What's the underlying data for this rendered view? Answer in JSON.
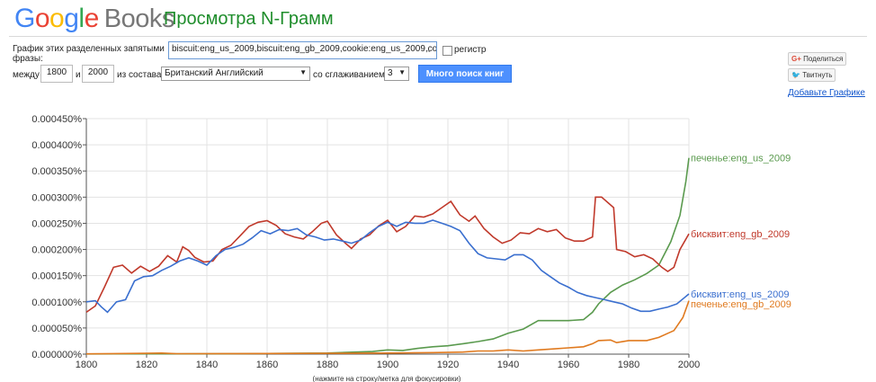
{
  "header": {
    "logo_google": [
      "G",
      "o",
      "o",
      "g",
      "l",
      "e"
    ],
    "logo_books": "Books",
    "title": "Просмотра N-Грамм"
  },
  "form": {
    "phrases_label_1": "График этих разделенных запятыми",
    "phrases_label_2": "фразы:",
    "phrases_value": "biscuit:eng_us_2009,biscuit:eng_gb_2009,cookie:eng_us_2009,coo",
    "case_label": "регистр",
    "between_label": "между",
    "year_start": "1800",
    "and_label": "и",
    "year_end": "2000",
    "corpus_label": "из состава",
    "corpus_value": "Британский Английский",
    "smoothing_label": "со сглаживанием",
    "smoothing_value": "3",
    "search_button": "Много поиск книг"
  },
  "social": {
    "share": "Поделиться",
    "tweet": "Твитнуть",
    "add_graph": "Добавьте Графике"
  },
  "colors": {
    "green_series": "#5a9a4e",
    "red_series": "#c0392b",
    "blue_series": "#3a6fcf",
    "orange_series": "#e07a1f",
    "title_green": "#1e8d2b",
    "button_blue": "#4d90fe"
  },
  "chart_data": {
    "type": "line",
    "xlim": [
      1800,
      2000
    ],
    "ylim": [
      0,
      0.00045
    ],
    "x_ticks": [
      "1800",
      "1820",
      "1840",
      "1860",
      "1880",
      "1900",
      "1920",
      "1940",
      "1960",
      "1980",
      "2000"
    ],
    "y_ticks": [
      "0.000000%",
      "0.000050%",
      "0.000100%",
      "0.000150%",
      "0.000200%",
      "0.000250%",
      "0.000300%",
      "0.000350%",
      "0.000400%",
      "0.000450%"
    ],
    "x_hint": "(нажмите на строку/метка для фокусировки)",
    "grid": true,
    "series": [
      {
        "name": "печенье:eng_us_2009",
        "color": "#5a9a4e",
        "points": [
          [
            1800,
            3e-07
          ],
          [
            1850,
            8e-07
          ],
          [
            1880,
            2e-06
          ],
          [
            1895,
            5e-06
          ],
          [
            1900,
            8e-06
          ],
          [
            1905,
            7e-06
          ],
          [
            1910,
            1.1e-05
          ],
          [
            1915,
            1.4e-05
          ],
          [
            1920,
            1.6e-05
          ],
          [
            1925,
            2e-05
          ],
          [
            1930,
            2.4e-05
          ],
          [
            1935,
            2.9e-05
          ],
          [
            1940,
            4e-05
          ],
          [
            1945,
            4.8e-05
          ],
          [
            1950,
            6.4e-05
          ],
          [
            1955,
            6.4e-05
          ],
          [
            1960,
            6.4e-05
          ],
          [
            1965,
            6.6e-05
          ],
          [
            1968,
            8e-05
          ],
          [
            1970,
            9.6e-05
          ],
          [
            1974,
            0.000118
          ],
          [
            1978,
            0.000132
          ],
          [
            1982,
            0.000142
          ],
          [
            1986,
            0.000154
          ],
          [
            1990,
            0.00017
          ],
          [
            1994,
            0.000215
          ],
          [
            1997,
            0.000265
          ],
          [
            1999,
            0.00033
          ],
          [
            2000,
            0.000375
          ]
        ]
      },
      {
        "name": "бисквит:eng_gb_2009",
        "color": "#c0392b",
        "points": [
          [
            1800,
            8e-05
          ],
          [
            1803,
            9.2e-05
          ],
          [
            1806,
            0.000128
          ],
          [
            1809,
            0.000166
          ],
          [
            1812,
            0.00017
          ],
          [
            1815,
            0.000155
          ],
          [
            1818,
            0.000168
          ],
          [
            1821,
            0.000158
          ],
          [
            1824,
            0.000168
          ],
          [
            1827,
            0.000188
          ],
          [
            1830,
            0.000176
          ],
          [
            1832,
            0.000205
          ],
          [
            1834,
            0.000198
          ],
          [
            1836,
            0.000185
          ],
          [
            1839,
            0.000176
          ],
          [
            1842,
            0.000178
          ],
          [
            1845,
            0.0002
          ],
          [
            1848,
            0.000208
          ],
          [
            1851,
            0.000226
          ],
          [
            1854,
            0.000244
          ],
          [
            1857,
            0.000252
          ],
          [
            1860,
            0.000255
          ],
          [
            1863,
            0.000246
          ],
          [
            1866,
            0.00023
          ],
          [
            1869,
            0.000224
          ],
          [
            1872,
            0.00022
          ],
          [
            1875,
            0.000234
          ],
          [
            1878,
            0.00025
          ],
          [
            1880,
            0.000254
          ],
          [
            1883,
            0.000228
          ],
          [
            1886,
            0.000212
          ],
          [
            1888,
            0.000202
          ],
          [
            1891,
            0.00022
          ],
          [
            1894,
            0.000228
          ],
          [
            1897,
            0.000245
          ],
          [
            1900,
            0.000256
          ],
          [
            1903,
            0.000234
          ],
          [
            1906,
            0.000244
          ],
          [
            1909,
            0.000264
          ],
          [
            1912,
            0.000262
          ],
          [
            1915,
            0.000268
          ],
          [
            1918,
            0.00028
          ],
          [
            1921,
            0.000292
          ],
          [
            1924,
            0.000266
          ],
          [
            1927,
            0.000254
          ],
          [
            1929,
            0.000264
          ],
          [
            1932,
            0.00024
          ],
          [
            1935,
            0.000224
          ],
          [
            1938,
            0.000212
          ],
          [
            1941,
            0.000218
          ],
          [
            1944,
            0.000232
          ],
          [
            1947,
            0.00023
          ],
          [
            1950,
            0.00024
          ],
          [
            1953,
            0.000234
          ],
          [
            1956,
            0.000238
          ],
          [
            1959,
            0.000222
          ],
          [
            1962,
            0.000216
          ],
          [
            1965,
            0.000216
          ],
          [
            1968,
            0.000224
          ],
          [
            1969,
            0.0003
          ],
          [
            1971,
            0.0003
          ],
          [
            1975,
            0.00028
          ],
          [
            1976,
            0.0002
          ],
          [
            1979,
            0.000196
          ],
          [
            1982,
            0.000186
          ],
          [
            1985,
            0.00019
          ],
          [
            1988,
            0.000182
          ],
          [
            1991,
            0.000166
          ],
          [
            1993,
            0.000158
          ],
          [
            1995,
            0.000166
          ],
          [
            1997,
            0.0002
          ],
          [
            2000,
            0.00023
          ]
        ]
      },
      {
        "name": "бисквит:eng_us_2009",
        "color": "#3a6fcf",
        "points": [
          [
            1800,
            0.0001
          ],
          [
            1803,
            0.000102
          ],
          [
            1805,
            9e-05
          ],
          [
            1807,
            8e-05
          ],
          [
            1810,
            0.0001
          ],
          [
            1813,
            0.000104
          ],
          [
            1816,
            0.00014
          ],
          [
            1819,
            0.000148
          ],
          [
            1822,
            0.00015
          ],
          [
            1825,
            0.00016
          ],
          [
            1828,
            0.000168
          ],
          [
            1831,
            0.000178
          ],
          [
            1834,
            0.000184
          ],
          [
            1837,
            0.000178
          ],
          [
            1840,
            0.00017
          ],
          [
            1843,
            0.000188
          ],
          [
            1846,
            0.0002
          ],
          [
            1849,
            0.000204
          ],
          [
            1852,
            0.00021
          ],
          [
            1855,
            0.000222
          ],
          [
            1858,
            0.000236
          ],
          [
            1861,
            0.00023
          ],
          [
            1864,
            0.000238
          ],
          [
            1867,
            0.000236
          ],
          [
            1870,
            0.00024
          ],
          [
            1873,
            0.000228
          ],
          [
            1876,
            0.000224
          ],
          [
            1879,
            0.000218
          ],
          [
            1882,
            0.00022
          ],
          [
            1885,
            0.000216
          ],
          [
            1888,
            0.000212
          ],
          [
            1891,
            0.000218
          ],
          [
            1894,
            0.000232
          ],
          [
            1897,
            0.000244
          ],
          [
            1900,
            0.000252
          ],
          [
            1903,
            0.000244
          ],
          [
            1906,
            0.000252
          ],
          [
            1909,
            0.00025
          ],
          [
            1912,
            0.00025
          ],
          [
            1915,
            0.000256
          ],
          [
            1918,
            0.00025
          ],
          [
            1921,
            0.000244
          ],
          [
            1924,
            0.000236
          ],
          [
            1927,
            0.000212
          ],
          [
            1930,
            0.000192
          ],
          [
            1933,
            0.000184
          ],
          [
            1936,
            0.000182
          ],
          [
            1939,
            0.00018
          ],
          [
            1942,
            0.00019
          ],
          [
            1945,
            0.00019
          ],
          [
            1948,
            0.00018
          ],
          [
            1951,
            0.00016
          ],
          [
            1954,
            0.000148
          ],
          [
            1957,
            0.000136
          ],
          [
            1960,
            0.000128
          ],
          [
            1963,
            0.000118
          ],
          [
            1966,
            0.000112
          ],
          [
            1969,
            0.000108
          ],
          [
            1972,
            0.000104
          ],
          [
            1975,
            0.0001
          ],
          [
            1978,
            9.6e-05
          ],
          [
            1981,
            8.8e-05
          ],
          [
            1984,
            8.2e-05
          ],
          [
            1987,
            8.2e-05
          ],
          [
            1990,
            8.6e-05
          ],
          [
            1993,
            9e-05
          ],
          [
            1996,
            9.6e-05
          ],
          [
            2000,
            0.000115
          ]
        ]
      },
      {
        "name": "печенье:eng_gb_2009",
        "color": "#e07a1f",
        "points": [
          [
            1800,
            5e-07
          ],
          [
            1820,
            1.5e-06
          ],
          [
            1825,
            2e-06
          ],
          [
            1830,
            8e-07
          ],
          [
            1850,
            1e-06
          ],
          [
            1880,
            1.5e-06
          ],
          [
            1900,
            2e-06
          ],
          [
            1915,
            3e-06
          ],
          [
            1925,
            4e-06
          ],
          [
            1930,
            6e-06
          ],
          [
            1935,
            6e-06
          ],
          [
            1940,
            8e-06
          ],
          [
            1945,
            6e-06
          ],
          [
            1950,
            8e-06
          ],
          [
            1955,
            1e-05
          ],
          [
            1960,
            1.2e-05
          ],
          [
            1965,
            1.4e-05
          ],
          [
            1968,
            2e-05
          ],
          [
            1970,
            2.6e-05
          ],
          [
            1974,
            2.7e-05
          ],
          [
            1976,
            2.2e-05
          ],
          [
            1980,
            2.6e-05
          ],
          [
            1986,
            2.6e-05
          ],
          [
            1990,
            3.2e-05
          ],
          [
            1995,
            4.5e-05
          ],
          [
            1998,
            7e-05
          ],
          [
            2000,
            0.000102
          ]
        ]
      }
    ]
  }
}
